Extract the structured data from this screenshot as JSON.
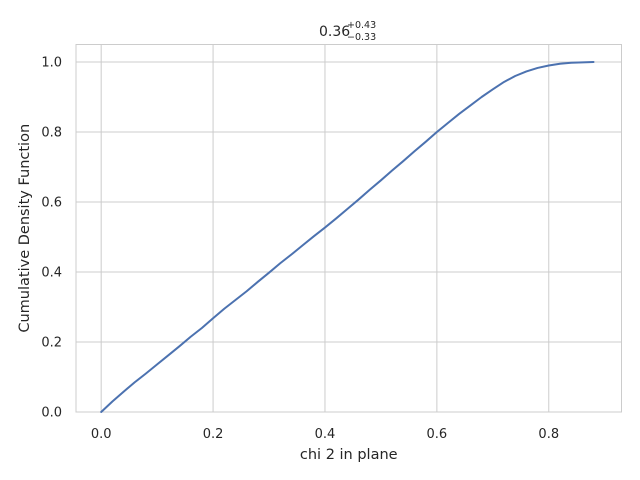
{
  "chart_data": {
    "type": "line",
    "title": {
      "value": "0.36",
      "upper": "+0.43",
      "lower": "−0.33"
    },
    "xlabel": "chi 2 in plane",
    "ylabel": "Cumulative Density Function",
    "xlim": [
      -0.045,
      0.93
    ],
    "ylim": [
      0.0,
      1.05
    ],
    "xticks": [
      0.0,
      0.2,
      0.4,
      0.6,
      0.8
    ],
    "xtick_labels": [
      "0.0",
      "0.2",
      "0.4",
      "0.6",
      "0.8"
    ],
    "yticks": [
      0.0,
      0.2,
      0.4,
      0.6,
      0.8,
      1.0
    ],
    "ytick_labels": [
      "0.0",
      "0.2",
      "0.4",
      "0.6",
      "0.8",
      "1.0"
    ],
    "grid": true,
    "series": [
      {
        "color": "#4c72b0",
        "x": [
          0.0,
          0.02,
          0.04,
          0.06,
          0.08,
          0.1,
          0.12,
          0.14,
          0.16,
          0.18,
          0.2,
          0.22,
          0.24,
          0.26,
          0.28,
          0.3,
          0.32,
          0.34,
          0.36,
          0.38,
          0.4,
          0.42,
          0.44,
          0.46,
          0.48,
          0.5,
          0.52,
          0.54,
          0.56,
          0.58,
          0.6,
          0.62,
          0.64,
          0.66,
          0.68,
          0.7,
          0.72,
          0.74,
          0.76,
          0.78,
          0.8,
          0.82,
          0.84,
          0.86,
          0.88
        ],
        "y": [
          0.0,
          0.03,
          0.058,
          0.085,
          0.11,
          0.136,
          0.162,
          0.188,
          0.215,
          0.24,
          0.268,
          0.295,
          0.32,
          0.345,
          0.372,
          0.398,
          0.425,
          0.45,
          0.476,
          0.502,
          0.527,
          0.553,
          0.58,
          0.607,
          0.635,
          0.662,
          0.69,
          0.717,
          0.745,
          0.772,
          0.8,
          0.826,
          0.852,
          0.876,
          0.9,
          0.922,
          0.943,
          0.96,
          0.973,
          0.983,
          0.99,
          0.995,
          0.998,
          0.999,
          1.0
        ]
      }
    ]
  }
}
